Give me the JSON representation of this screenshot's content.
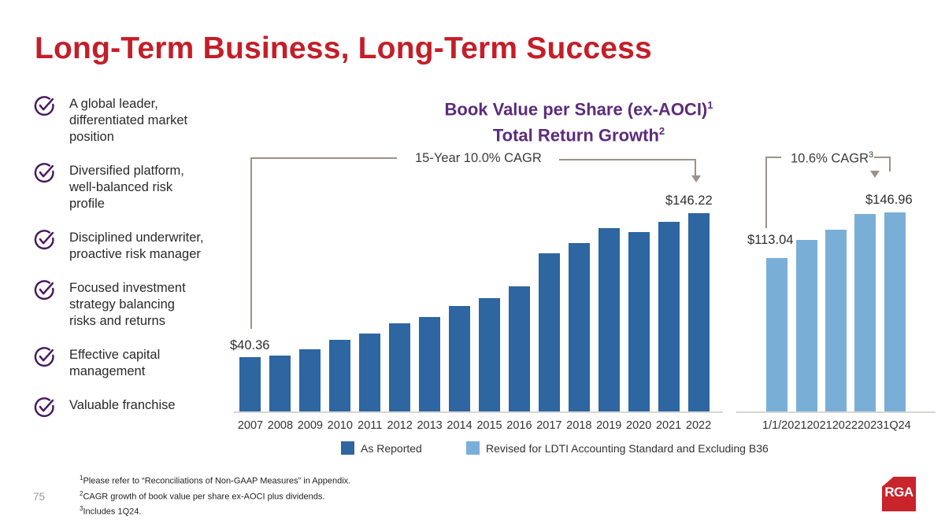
{
  "slide": {
    "title": "Long-Term Business, Long-Term Success",
    "page_number": "75",
    "logo_text": "RGA"
  },
  "bullets": [
    {
      "text": "A global leader,\ndifferentiated market\nposition"
    },
    {
      "text": "Diversified platform,\nwell-balanced risk\nprofile"
    },
    {
      "text": "Disciplined underwriter,\nproactive risk manager"
    },
    {
      "text": "Focused investment\nstrategy balancing\nrisks and returns"
    },
    {
      "text": "Effective capital\nmanagement"
    },
    {
      "text": "Valuable franchise"
    }
  ],
  "chart": {
    "title_line1": "Book Value per Share (ex-AOCI)",
    "title_sup1": "1",
    "title_line2": "Total Return Growth",
    "title_sup2": "2",
    "left_cagr": "15-Year 10.0% CAGR",
    "right_cagr": "10.6% CAGR",
    "right_cagr_sup": "3",
    "left_first_label": "$40.36",
    "left_last_label": "$146.22",
    "right_first_label": "$113.04",
    "right_last_label": "$146.96"
  },
  "chart_data": [
    {
      "type": "bar",
      "name": "As Reported",
      "title": "Book Value per Share (ex-AOCI) Total Return Growth",
      "categories": [
        "2007",
        "2008",
        "2009",
        "2010",
        "2011",
        "2012",
        "2013",
        "2014",
        "2015",
        "2016",
        "2017",
        "2018",
        "2019",
        "2020",
        "2021",
        "2022"
      ],
      "values": [
        40.36,
        41.9,
        46.5,
        53.3,
        57.6,
        65.2,
        70.0,
        78.3,
        83.7,
        92.6,
        116.7,
        124.3,
        135.3,
        132.3,
        139.6,
        146.22
      ],
      "labeled_points": {
        "2007": 40.36,
        "2022": 146.22
      },
      "annotation": "15-Year 10.0% CAGR",
      "color": "#2d66a0",
      "ylim": [
        0,
        160
      ],
      "grid": false
    },
    {
      "type": "bar",
      "name": "Revised for LDTI Accounting Standard and Excluding B36",
      "categories": [
        "1/1/2021",
        "2021",
        "2022",
        "2023",
        "1Q24"
      ],
      "values": [
        113.04,
        126.8,
        134.2,
        145.8,
        146.96
      ],
      "labeled_points": {
        "1/1/2021": 113.04,
        "1Q24": 146.96
      },
      "annotation": "10.6% CAGR",
      "color": "#79afd7",
      "ylim": [
        0,
        160
      ],
      "grid": false
    }
  ],
  "legend": [
    {
      "label": "As Reported",
      "color": "#2d66a0"
    },
    {
      "label": "Revised for LDTI Accounting Standard and Excluding B36",
      "color": "#79afd7"
    }
  ],
  "footnotes": [
    {
      "sup": "1",
      "text": "Please refer to “Reconciliations of Non-GAAP Measures” in Appendix."
    },
    {
      "sup": "2",
      "text": "CAGR growth of book value per share ex-AOCI plus dividends."
    },
    {
      "sup": "3",
      "text": "Includes 1Q24."
    }
  ],
  "colors": {
    "title_red": "#c41e28",
    "chart_title_purple": "#5d2b7d",
    "check_purple": "#47185f",
    "bar_dark_blue": "#2d66a0",
    "bar_light_blue": "#79afd7",
    "bracket_gray": "#9b9289",
    "logo_red": "#c9232b"
  }
}
